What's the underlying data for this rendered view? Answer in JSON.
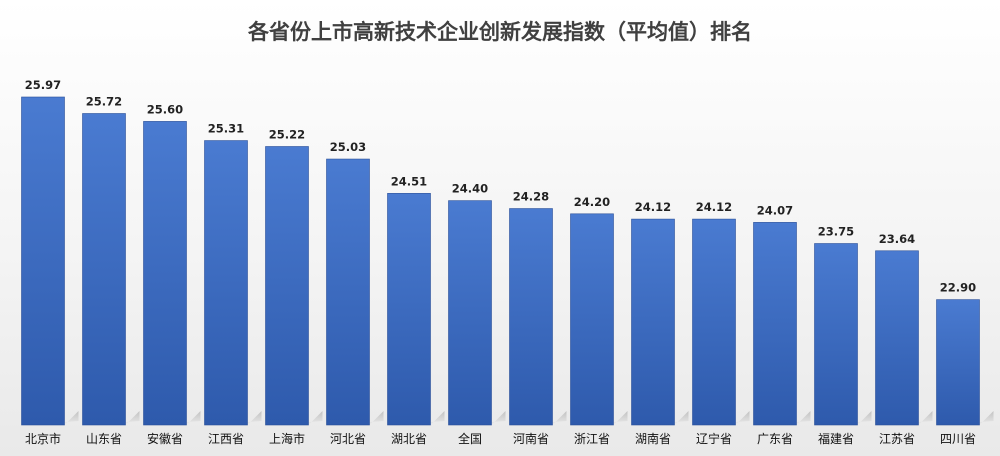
{
  "chart_data": {
    "type": "bar",
    "title": "各省份上市高新技术企业创新发展指数（平均值）排名",
    "xlabel": "",
    "ylabel": "",
    "categories": [
      "北京市",
      "山东省",
      "安徽省",
      "江西省",
      "上海市",
      "河北省",
      "湖北省",
      "全国",
      "河南省",
      "浙江省",
      "湖南省",
      "辽宁省",
      "广东省",
      "福建省",
      "江苏省",
      "四川省"
    ],
    "values": [
      25.97,
      25.72,
      25.6,
      25.31,
      25.22,
      25.03,
      24.51,
      24.4,
      24.28,
      24.2,
      24.12,
      24.12,
      24.07,
      23.75,
      23.64,
      22.9
    ],
    "value_labels": [
      "25.97",
      "25.72",
      "25.60",
      "25.31",
      "25.22",
      "25.03",
      "24.51",
      "24.40",
      "24.28",
      "24.20",
      "24.12",
      "24.12",
      "24.07",
      "23.75",
      "23.64",
      "22.90"
    ],
    "grid": false,
    "legend": "none",
    "bar_color_top": "#4a7bd1",
    "bar_color_bottom": "#2e5aac"
  }
}
